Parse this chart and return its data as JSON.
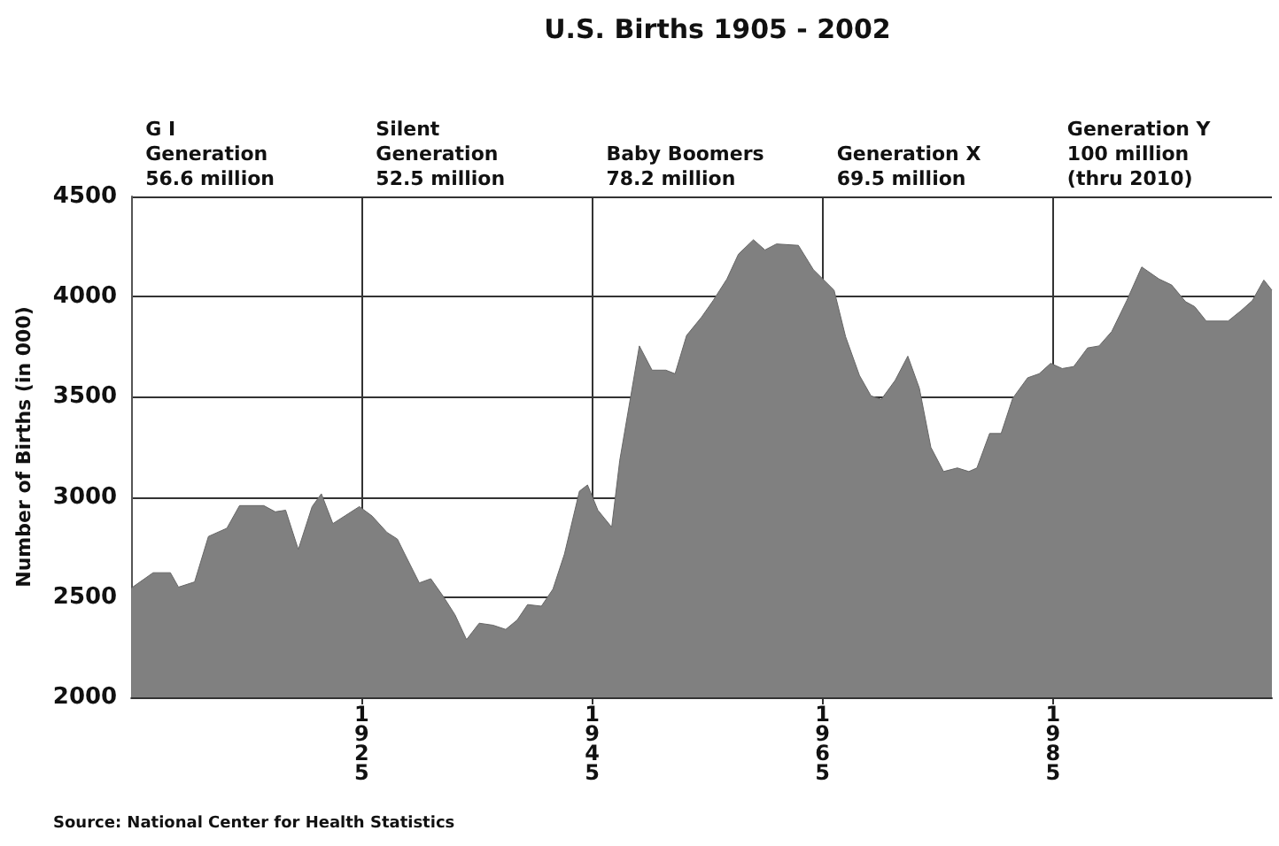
{
  "chart_data": {
    "type": "area",
    "title": "U.S. Births 1905 - 2002",
    "ylabel": "Number of Births (in 000)",
    "annotations": [
      "G I\nGeneration\n56.6 million",
      "Silent\nGeneration\n52.5 million",
      "Baby Boomers\n78.2 million",
      "Generation X\n69.5 million",
      "Generation Y\n100 million\n(thru 2010)",
      "Source: National Center for Health Statistics"
    ],
    "x": [
      1905,
      1906.9,
      1908.4,
      1909.1,
      1910.5,
      1911.7,
      1913.3,
      1914.4,
      1916.5,
      1917.5,
      1918.4,
      1919.5,
      1920.7,
      1921.5,
      1922.5,
      1924.8,
      1925.9,
      1927.2,
      1928.1,
      1928.7,
      1930,
      1931,
      1932.1,
      1933.1,
      1934.1,
      1935.2,
      1936.4,
      1937.5,
      1938.5,
      1939.4,
      1940.6,
      1941.6,
      1942.6,
      1943.9,
      1944.6,
      1945.5,
      1946.7,
      1947.4,
      1949.1,
      1950.2,
      1951.4,
      1952.2,
      1953.2,
      1954.5,
      1955.5,
      1956.7,
      1957.7,
      1959,
      1960,
      1961,
      1962.9,
      1964.2,
      1966,
      1967,
      1968.2,
      1969.2,
      1970.1,
      1971.3,
      1972.4,
      1973.4,
      1974.4,
      1975.5,
      1976.7,
      1977.7,
      1978.4,
      1979.5,
      1980.5,
      1981.5,
      1982.8,
      1983.8,
      1984.8,
      1985.8,
      1986.8,
      1988,
      1989,
      1990.1,
      1991.4,
      1992.7,
      1994.2,
      1995.3,
      1996.5,
      1997.3,
      1998.3,
      2000.2,
      2001.3,
      2002.3,
      2003.3,
      2004
    ],
    "series": [
      {
        "color": "#808080",
        "values": [
          2545,
          2622,
          2622,
          2550,
          2576,
          2803,
          2844,
          2957,
          2957,
          2926,
          2934,
          2738,
          2952,
          3016,
          2867,
          2952,
          2905,
          2823,
          2790,
          2720,
          2571,
          2592,
          2502,
          2412,
          2288,
          2370,
          2360,
          2339,
          2386,
          2463,
          2455,
          2540,
          2715,
          3029,
          3060,
          2934,
          2849,
          3183,
          3754,
          3633,
          3633,
          3615,
          3806,
          3898,
          3980,
          4088,
          4212,
          4284,
          4233,
          4263,
          4256,
          4135,
          4032,
          3800,
          3607,
          3505,
          3487,
          3582,
          3703,
          3543,
          3248,
          3127,
          3145,
          3127,
          3145,
          3317,
          3317,
          3492,
          3595,
          3615,
          3667,
          3641,
          3651,
          3744,
          3754,
          3826,
          3980,
          4148,
          4088,
          4058,
          3975,
          3950,
          3878,
          3878,
          3929,
          3980,
          4083,
          4032
        ]
      }
    ],
    "xlim": [
      1905,
      2004
    ],
    "xticks": [
      1925,
      1945,
      1965,
      1985
    ],
    "ylim": [
      2000,
      4500
    ],
    "yticks": [
      2000,
      2500,
      3000,
      3500,
      4000,
      4500
    ],
    "grid": true
  }
}
